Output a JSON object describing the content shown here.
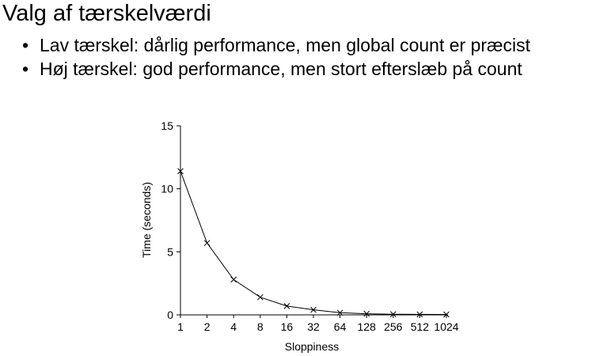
{
  "slide": {
    "title": "Valg af tærskelværdi",
    "bullet_symbol": "•",
    "bullets": [
      "Lav tærskel: dårlig performance, men global count er præcist",
      "Høj tærskel: god performance, men stort efterslæb på count"
    ]
  },
  "chart_data": {
    "type": "line",
    "title": "",
    "xlabel": "Sloppiness",
    "ylabel": "Time (seconds)",
    "x_scale": "log2",
    "categories": [
      "1",
      "2",
      "4",
      "8",
      "16",
      "32",
      "64",
      "128",
      "256",
      "512",
      "1024"
    ],
    "series": [
      {
        "marker": "x",
        "values": [
          11.4,
          5.7,
          2.8,
          1.4,
          0.7,
          0.4,
          0.17,
          0.09,
          0.05,
          0.04,
          0.03
        ]
      }
    ],
    "yticks": [
      0,
      5,
      10,
      15
    ],
    "ylim": [
      0,
      15
    ],
    "grid": false,
    "line_color": "#000000"
  }
}
